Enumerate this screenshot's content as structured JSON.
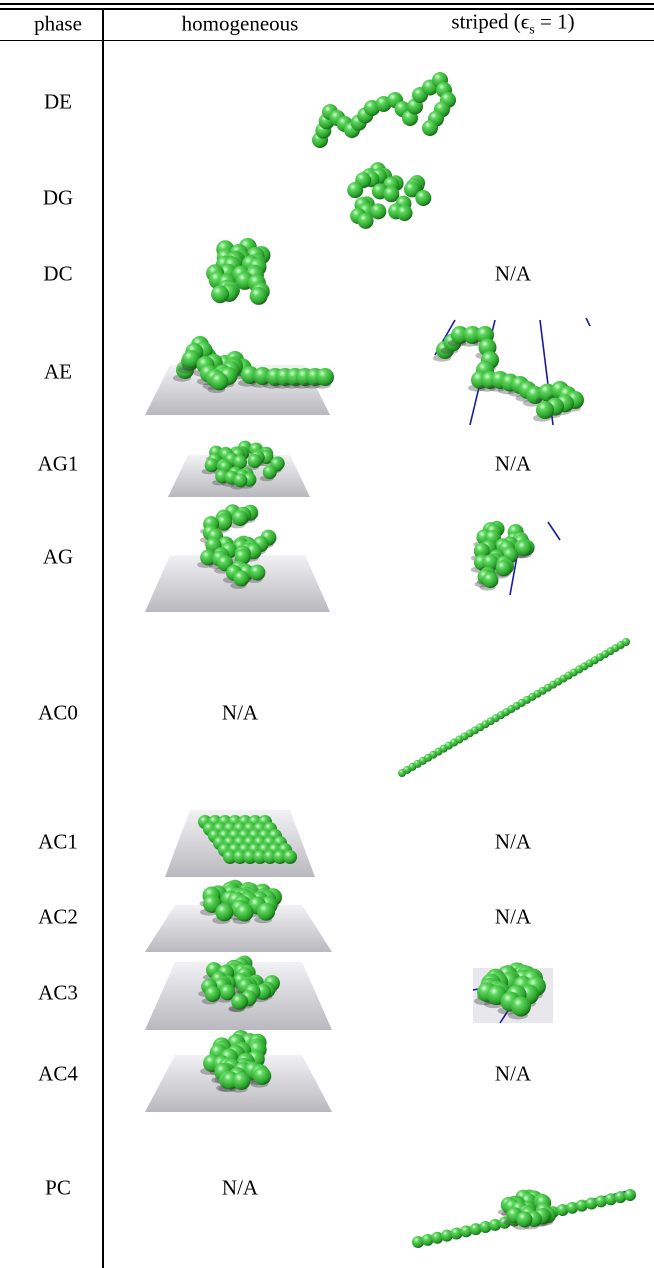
{
  "table": {
    "header": [
      "phase",
      "homogeneous",
      {
        "text": "striped (ϵ",
        "sub": "s",
        "tail": " = 1)"
      }
    ],
    "rows": [
      {
        "phase": "DE"
      },
      {
        "phase": "DG"
      },
      {
        "phase": "DC",
        "striped": "N/A"
      },
      {
        "phase": "AE"
      },
      {
        "phase": "AG1",
        "striped": "N/A"
      },
      {
        "phase": "AG"
      },
      {
        "phase": "AC0",
        "homogeneous": "N/A"
      },
      {
        "phase": "AC1",
        "striped": "N/A"
      },
      {
        "phase": "AC2",
        "striped": "N/A"
      },
      {
        "phase": "AC3"
      },
      {
        "phase": "AC4",
        "striped": "N/A"
      },
      {
        "phase": "PC",
        "homogeneous": "N/A"
      }
    ]
  }
}
